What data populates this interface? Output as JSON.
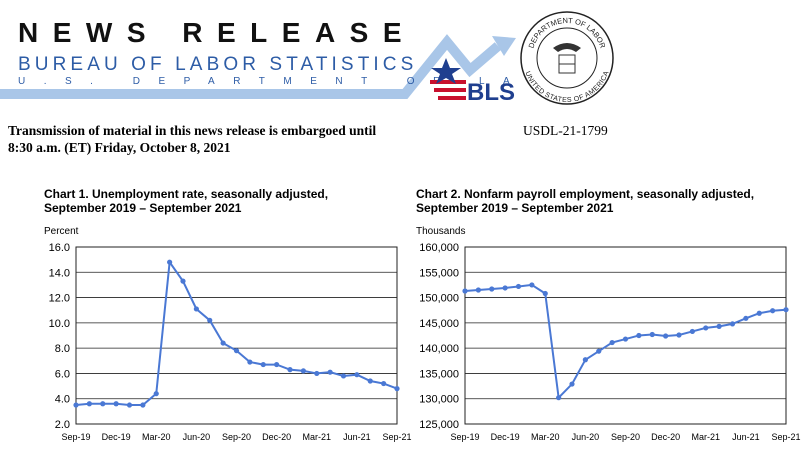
{
  "header": {
    "title": "NEWS RELEASE",
    "agency": "BUREAU OF LABOR STATISTICS",
    "department": "U.S. DEPARTMENT OF LABOR",
    "logo": "BLS",
    "seal_top": "DEPARTMENT OF LABOR",
    "seal_bottom": "UNITED STATES OF AMERICA"
  },
  "embargo": [
    "Transmission of material in this news release is embargoed until",
    "8:30 a.m. (ET) Friday, October 8, 2021"
  ],
  "release_number": "USDL-21-1799",
  "chart_data": [
    {
      "type": "line",
      "title": [
        "Chart 1. Unemployment rate, seasonally adjusted,",
        "September 2019 – September 2021"
      ],
      "y_label": "Percent",
      "categories": [
        "Sep-19",
        null,
        null,
        "Dec-19",
        null,
        null,
        "Mar-20",
        null,
        null,
        "Jun-20",
        null,
        null,
        "Sep-20",
        null,
        null,
        "Dec-20",
        null,
        null,
        "Mar-21",
        null,
        null,
        "Jun-21",
        null,
        null,
        "Sep-21"
      ],
      "values": [
        3.5,
        3.6,
        3.6,
        3.6,
        3.5,
        3.5,
        4.4,
        14.8,
        13.3,
        11.1,
        10.2,
        8.4,
        7.8,
        6.9,
        6.7,
        6.7,
        6.3,
        6.2,
        6.0,
        6.1,
        5.8,
        5.9,
        5.4,
        5.2,
        4.8
      ],
      "color": "#4a78d4",
      "ylim": [
        2,
        16
      ],
      "yticks": [
        {
          "value": 2,
          "label": "2.0"
        },
        {
          "value": 4,
          "label": "4.0"
        },
        {
          "value": 6,
          "label": "6.0"
        },
        {
          "value": 8,
          "label": "8.0"
        },
        {
          "value": 10,
          "label": "10.0"
        },
        {
          "value": 12,
          "label": "12.0"
        },
        {
          "value": 14,
          "label": "14.0"
        },
        {
          "value": 16,
          "label": "16.0"
        }
      ],
      "grid": true
    },
    {
      "type": "line",
      "title": [
        "Chart 2. Nonfarm payroll employment, seasonally adjusted,",
        "September 2019 – September 2021"
      ],
      "y_label": "Thousands",
      "categories": [
        "Sep-19",
        null,
        null,
        "Dec-19",
        null,
        null,
        "Mar-20",
        null,
        null,
        "Jun-20",
        null,
        null,
        "Sep-20",
        null,
        null,
        "Dec-20",
        null,
        null,
        "Mar-21",
        null,
        null,
        "Jun-21",
        null,
        null,
        "Sep-21"
      ],
      "values": [
        151300,
        151500,
        151700,
        151900,
        152200,
        152500,
        150800,
        130200,
        132900,
        137700,
        139400,
        141100,
        141800,
        142500,
        142700,
        142400,
        142600,
        143300,
        144000,
        144300,
        144800,
        145900,
        146900,
        147400,
        147600
      ],
      "color": "#4a78d4",
      "ylim": [
        125000,
        160000
      ],
      "yticks": [
        {
          "value": 125000,
          "label": "125,000"
        },
        {
          "value": 130000,
          "label": "130,000"
        },
        {
          "value": 135000,
          "label": "135,000"
        },
        {
          "value": 140000,
          "label": "140,000"
        },
        {
          "value": 145000,
          "label": "145,000"
        },
        {
          "value": 150000,
          "label": "150,000"
        },
        {
          "value": 155000,
          "label": "155,000"
        },
        {
          "value": 160000,
          "label": "160,000"
        }
      ],
      "grid": true
    }
  ]
}
